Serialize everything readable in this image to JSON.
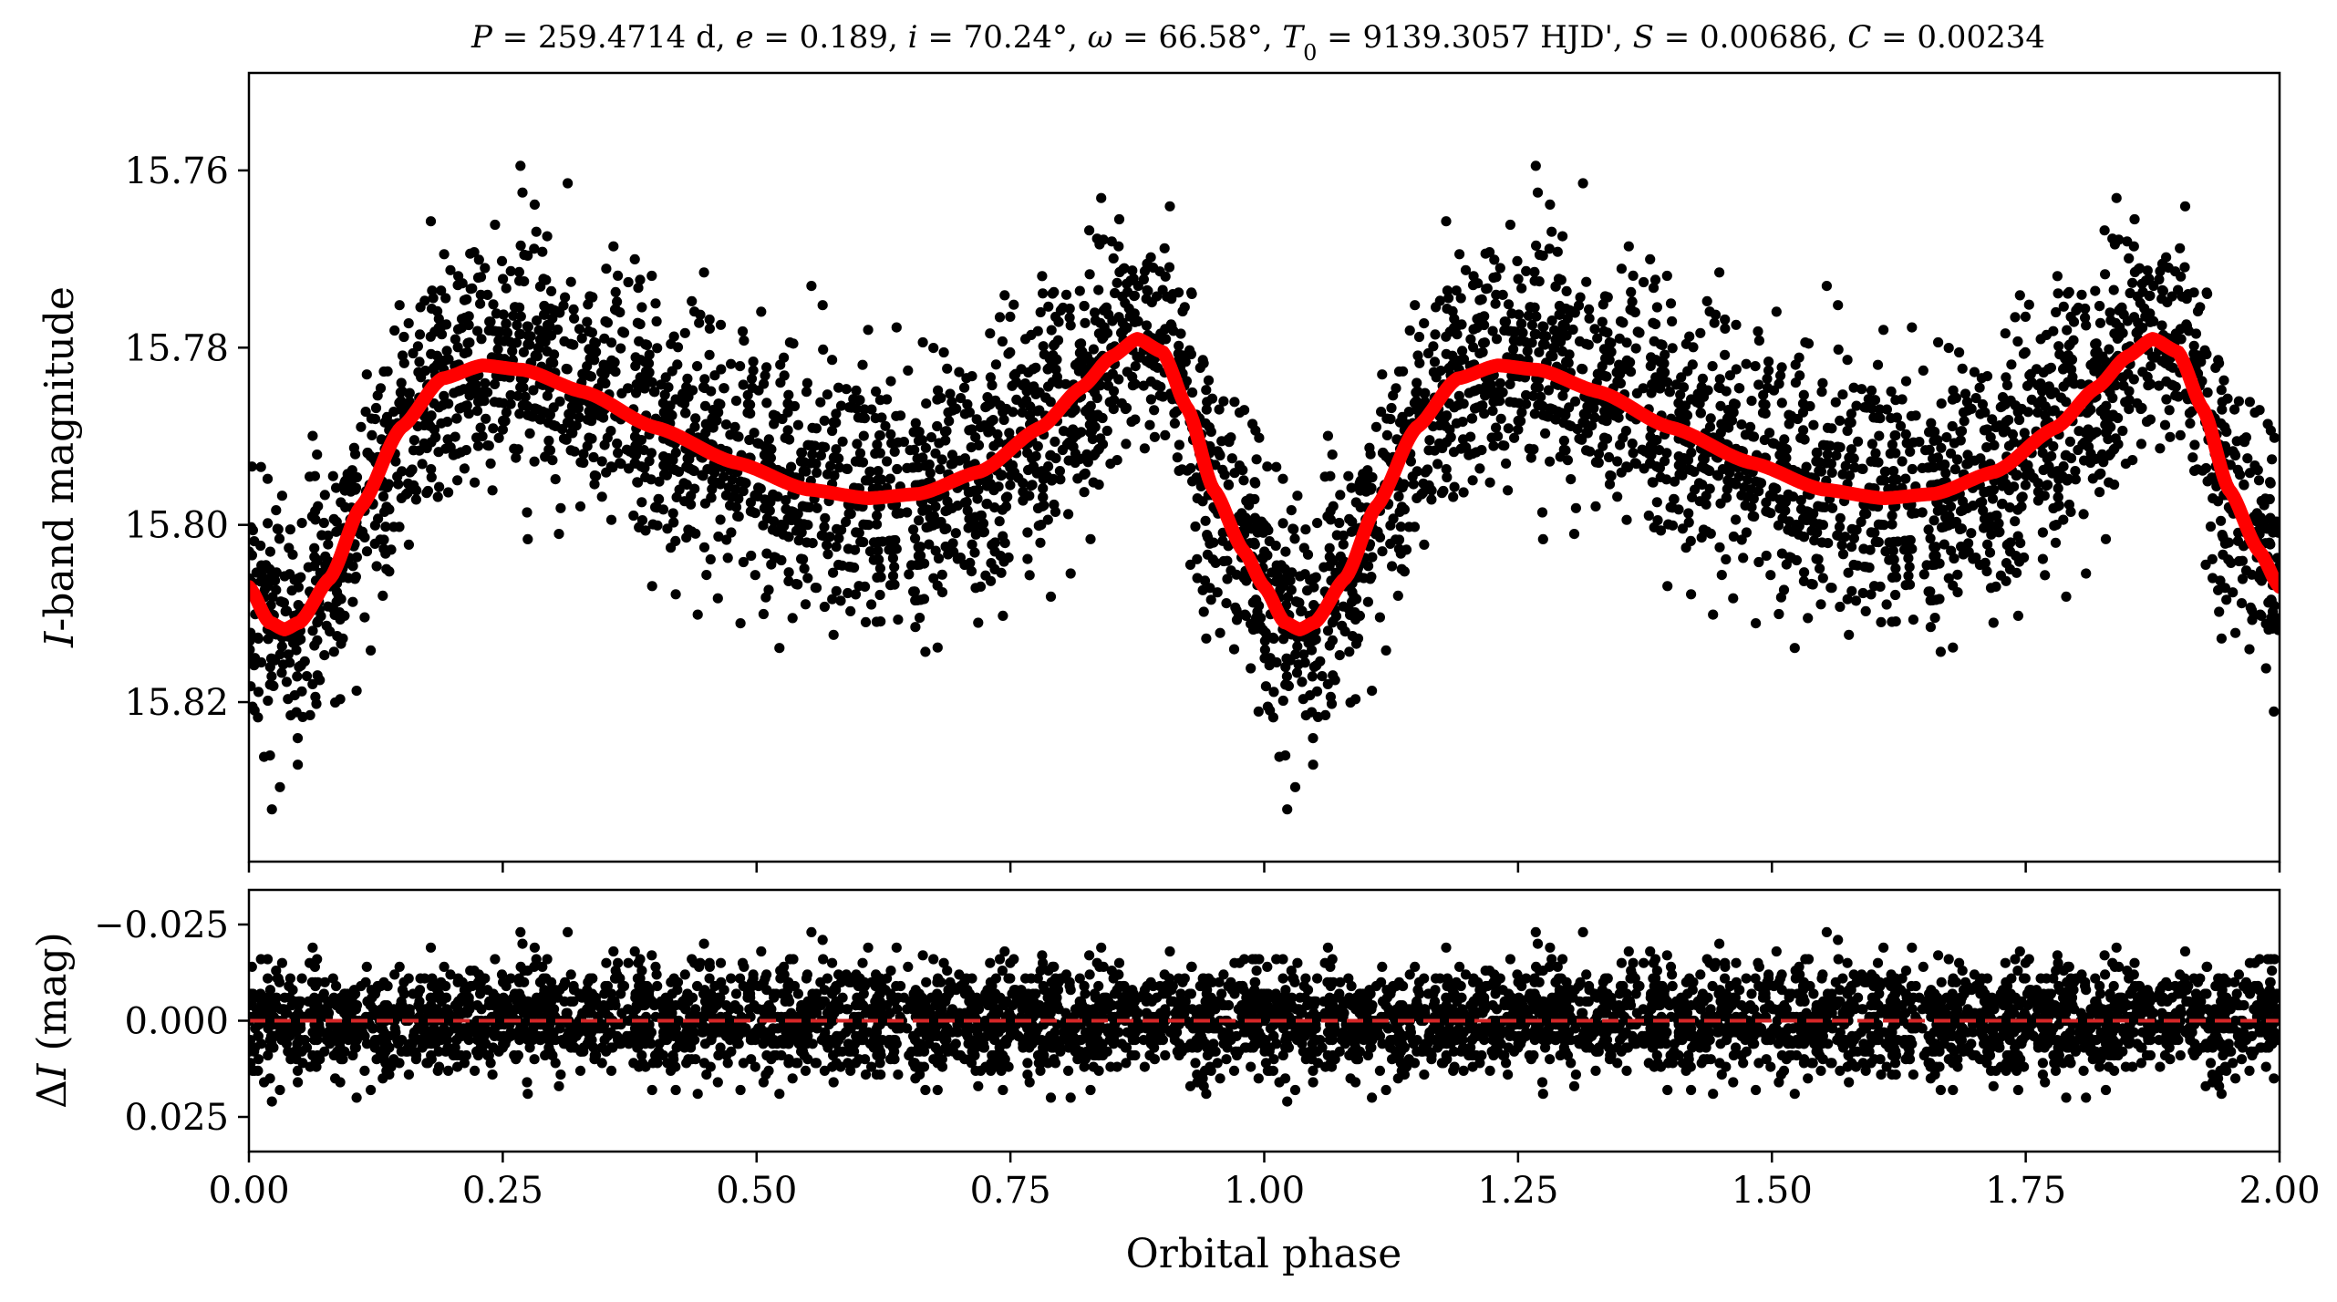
{
  "chart_data": [
    {
      "type": "scatter",
      "panel": "top",
      "title_parts": [
        {
          "t": "P",
          "i": true
        },
        {
          "t": " = 259.4714 d, "
        },
        {
          "t": "e",
          "i": true
        },
        {
          "t": " = 0.189, "
        },
        {
          "t": "i",
          "i": true
        },
        {
          "t": " = 70.24°, "
        },
        {
          "t": "ω",
          "i": true
        },
        {
          "t": " = 66.58°, "
        },
        {
          "t": "T",
          "i": true
        },
        {
          "t": "0",
          "sub": true
        },
        {
          "t": " = 9139.3057 HJD', "
        },
        {
          "t": "S",
          "i": true
        },
        {
          "t": " = 0.00686, "
        },
        {
          "t": "C",
          "i": true
        },
        {
          "t": " = 0.00234"
        }
      ],
      "ylabel_italic": "I",
      "ylabel_rest": "-band magnitude",
      "xlim": [
        0.0,
        2.0
      ],
      "ylim": [
        15.838,
        15.749
      ],
      "y_inverted": true,
      "yticks": [
        15.76,
        15.78,
        15.8,
        15.82
      ],
      "ytick_labels": [
        "15.76",
        "15.78",
        "15.80",
        "15.82"
      ],
      "xticks": [
        0.0,
        0.25,
        0.5,
        0.75,
        1.0,
        1.25,
        1.5,
        1.75,
        2.0
      ],
      "model": {
        "color": "#ff0000",
        "phase": [
          0.0,
          0.02,
          0.035,
          0.05,
          0.08,
          0.11,
          0.15,
          0.19,
          0.23,
          0.27,
          0.33,
          0.4,
          0.48,
          0.55,
          0.61,
          0.66,
          0.72,
          0.78,
          0.82,
          0.85,
          0.875,
          0.9,
          0.925,
          0.95,
          0.98,
          1.0
        ],
        "magnitude": [
          15.807,
          15.811,
          15.8118,
          15.811,
          15.806,
          15.798,
          15.789,
          15.7835,
          15.782,
          15.7825,
          15.785,
          15.789,
          15.793,
          15.796,
          15.797,
          15.7965,
          15.794,
          15.789,
          15.7845,
          15.781,
          15.779,
          15.7805,
          15.787,
          15.796,
          15.803,
          15.807
        ]
      },
      "scatter_points_per_cycle": 2300,
      "scatter_sigma_mag": 0.007,
      "scatter_color": "#000000"
    },
    {
      "type": "scatter",
      "panel": "bottom",
      "xlabel": "Orbital phase",
      "ylabel_prefix": "Δ",
      "ylabel_italic": "I",
      "ylabel_rest": " (mag)",
      "xlim": [
        0.0,
        2.0
      ],
      "ylim": [
        0.034,
        -0.034
      ],
      "y_inverted": true,
      "yticks": [
        -0.025,
        0.0,
        0.025
      ],
      "ytick_labels": [
        "−0.025",
        "0.000",
        "0.025"
      ],
      "xticks": [
        0.0,
        0.25,
        0.5,
        0.75,
        1.0,
        1.25,
        1.5,
        1.75,
        2.0
      ],
      "xtick_labels": [
        "0.00",
        "0.25",
        "0.50",
        "0.75",
        "1.00",
        "1.25",
        "1.50",
        "1.75",
        "2.00"
      ],
      "zero_line": {
        "value": 0.0,
        "color": "#d62728",
        "style": "dashed"
      },
      "scatter_sigma_mag": 0.007,
      "scatter_color": "#000000"
    }
  ]
}
